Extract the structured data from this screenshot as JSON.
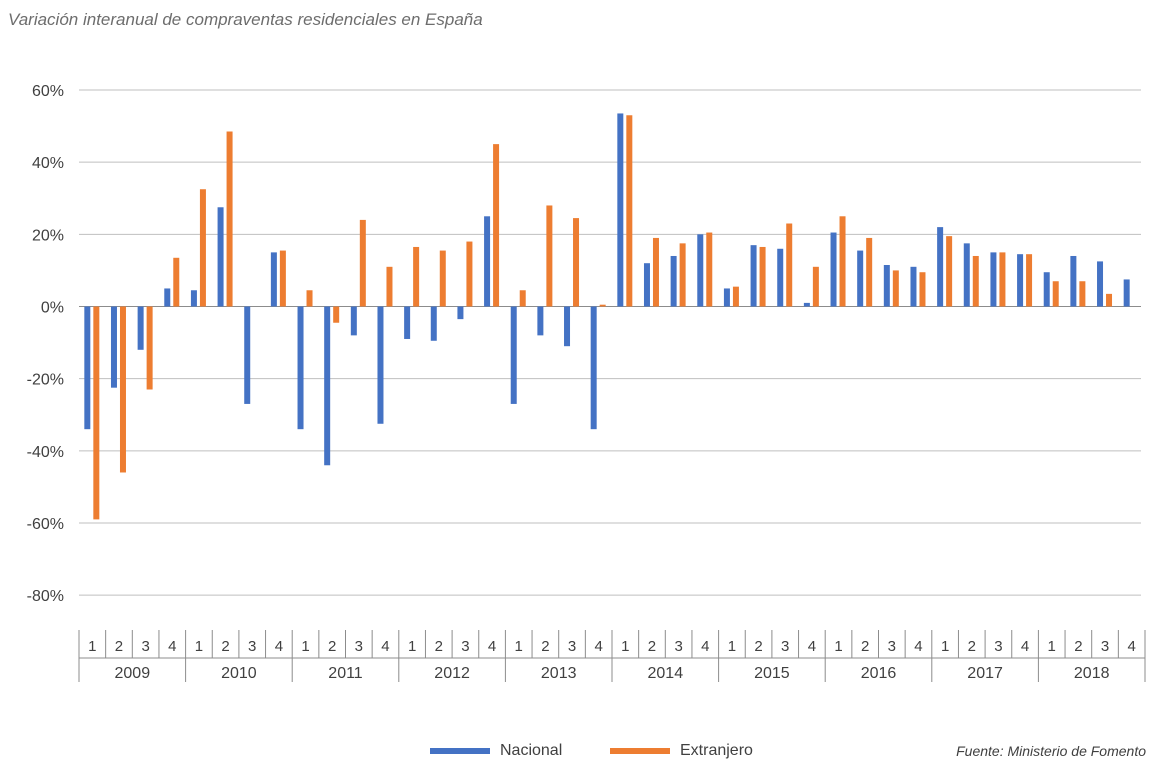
{
  "title": "Variación interanual de compraventas residenciales en España",
  "source": "Fuente: Ministerio de Fomento",
  "colors": {
    "Nacional": "#4472c4",
    "Extranjero": "#ed7d31",
    "grid": "#bfbfbf",
    "text": "#404040"
  },
  "chart_data": {
    "type": "bar",
    "title": "Variación interanual de compraventas residenciales en España",
    "xlabel": "",
    "ylabel": "",
    "ylim": [
      -80,
      60
    ],
    "yticks": [
      60,
      40,
      20,
      0,
      -20,
      -40,
      -60,
      -80
    ],
    "ytick_labels": [
      "60%",
      "40%",
      "20%",
      "0%",
      "-20%",
      "-40%",
      "-60%",
      "-80%"
    ],
    "grid": true,
    "legend_position": "bottom",
    "years": [
      "2009",
      "2010",
      "2011",
      "2012",
      "2013",
      "2014",
      "2015",
      "2016",
      "2017",
      "2018"
    ],
    "quarters": [
      "1",
      "2",
      "3",
      "4"
    ],
    "series": [
      {
        "name": "Nacional",
        "values": [
          -34,
          -22.5,
          -12,
          5,
          4.5,
          27.5,
          -27,
          15,
          -34,
          -44,
          -8,
          -32.5,
          -9,
          -9.5,
          -3.5,
          25,
          -27,
          -8,
          -11,
          -34,
          53.5,
          12,
          14,
          20,
          5,
          17,
          16,
          1,
          20.5,
          15.5,
          11.5,
          11,
          22,
          17.5,
          15,
          14.5,
          9.5,
          14,
          12.5,
          7.5
        ]
      },
      {
        "name": "Extranjero",
        "values": [
          -59,
          -46,
          -23,
          13.5,
          32.5,
          48.5,
          0,
          15.5,
          4.5,
          -4.5,
          24,
          11,
          16.5,
          15.5,
          18,
          45,
          4.5,
          28,
          24.5,
          0.5,
          53,
          19,
          17.5,
          20.5,
          5.5,
          16.5,
          23,
          11,
          25,
          19,
          10,
          9.5,
          19.5,
          14,
          15,
          14.5,
          7,
          7,
          3.5,
          0
        ]
      }
    ]
  },
  "legend": [
    {
      "name": "Nacional",
      "color": "#4472c4"
    },
    {
      "name": "Extranjero",
      "color": "#ed7d31"
    }
  ]
}
